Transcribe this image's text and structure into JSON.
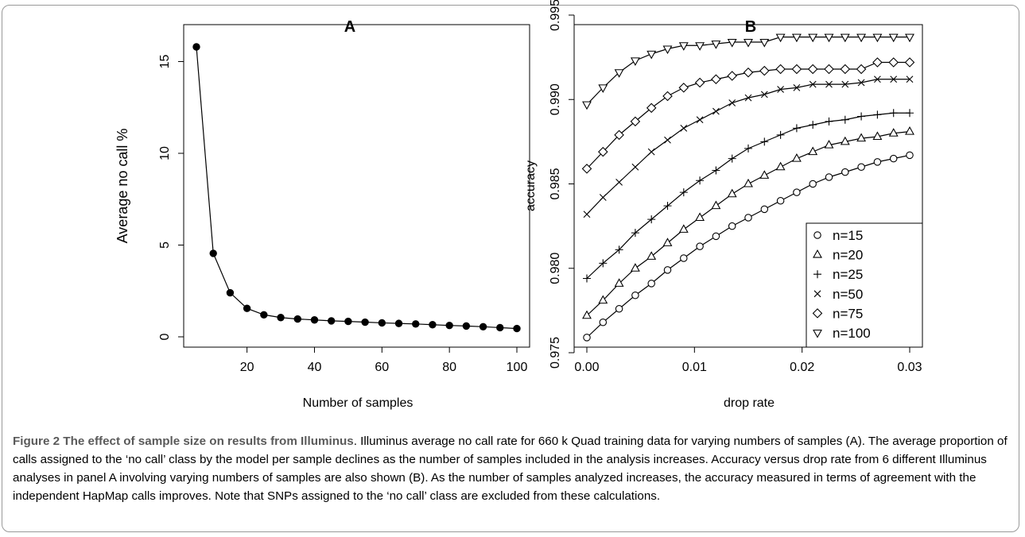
{
  "chart_data": [
    {
      "type": "line",
      "title": "A",
      "xlabel": "Number of samples",
      "ylabel": "Average no call %",
      "xlim": [
        5,
        100
      ],
      "ylim": [
        0,
        15.8
      ],
      "x_ticks": [
        20,
        40,
        60,
        80,
        100
      ],
      "y_ticks": [
        0,
        5,
        10,
        15
      ],
      "grid": false,
      "marker": "filled-circle",
      "x": [
        5,
        10,
        15,
        20,
        25,
        30,
        35,
        40,
        45,
        50,
        55,
        60,
        65,
        70,
        75,
        80,
        85,
        90,
        95,
        100
      ],
      "y": [
        15.8,
        4.55,
        2.4,
        1.55,
        1.2,
        1.05,
        0.97,
        0.92,
        0.87,
        0.84,
        0.8,
        0.76,
        0.73,
        0.7,
        0.66,
        0.62,
        0.59,
        0.55,
        0.5,
        0.45
      ]
    },
    {
      "type": "line",
      "title": "B",
      "xlabel": "drop rate",
      "ylabel": "accuracy",
      "xlim": [
        0,
        0.03
      ],
      "ylim": [
        0.9755,
        0.9945
      ],
      "x_ticks": [
        "0.00",
        "0.01",
        "0.02",
        "0.03"
      ],
      "y_ticks": [
        "0.975",
        "0.980",
        "0.985",
        "0.990",
        "0.995"
      ],
      "grid": false,
      "legend_position": "bottom-right",
      "x": [
        0,
        0.0015,
        0.003,
        0.0045,
        0.006,
        0.0075,
        0.009,
        0.0105,
        0.012,
        0.0135,
        0.015,
        0.0165,
        0.018,
        0.0195,
        0.021,
        0.0225,
        0.024,
        0.0255,
        0.027,
        0.0285,
        0.03
      ],
      "series": [
        {
          "name": "n=15",
          "marker": "circle",
          "values": [
            0.9759,
            0.9768,
            0.9776,
            0.9784,
            0.9791,
            0.9799,
            0.9806,
            0.9813,
            0.9819,
            0.9825,
            0.983,
            0.9835,
            0.984,
            0.9845,
            0.985,
            0.9854,
            0.9857,
            0.986,
            0.9863,
            0.9865,
            0.9867
          ]
        },
        {
          "name": "n=20",
          "marker": "triangle-up",
          "values": [
            0.9772,
            0.9781,
            0.9791,
            0.98,
            0.9807,
            0.9815,
            0.9823,
            0.983,
            0.9837,
            0.9844,
            0.985,
            0.9855,
            0.986,
            0.9865,
            0.9869,
            0.9873,
            0.9875,
            0.9877,
            0.9878,
            0.988,
            0.9881
          ]
        },
        {
          "name": "n=25",
          "marker": "plus",
          "values": [
            0.9794,
            0.9803,
            0.9811,
            0.9821,
            0.9829,
            0.9837,
            0.9845,
            0.9852,
            0.9858,
            0.9865,
            0.9871,
            0.9875,
            0.9879,
            0.9883,
            0.9885,
            0.9887,
            0.9888,
            0.989,
            0.9891,
            0.9892,
            0.9892
          ]
        },
        {
          "name": "n=50",
          "marker": "cross",
          "values": [
            0.9832,
            0.9842,
            0.9851,
            0.986,
            0.9869,
            0.9876,
            0.9883,
            0.9888,
            0.9893,
            0.9898,
            0.9901,
            0.9903,
            0.9906,
            0.9907,
            0.9909,
            0.9909,
            0.9909,
            0.991,
            0.9912,
            0.9912,
            0.9912
          ]
        },
        {
          "name": "n=75",
          "marker": "diamond",
          "values": [
            0.9859,
            0.9869,
            0.9879,
            0.9887,
            0.9895,
            0.9902,
            0.9907,
            0.991,
            0.9912,
            0.9914,
            0.9916,
            0.9917,
            0.9918,
            0.9918,
            0.9918,
            0.9918,
            0.9918,
            0.9918,
            0.9922,
            0.9922,
            0.9922
          ]
        },
        {
          "name": "n=100",
          "marker": "triangle-down",
          "values": [
            0.9897,
            0.9907,
            0.9916,
            0.9923,
            0.9927,
            0.993,
            0.9932,
            0.9932,
            0.9933,
            0.9934,
            0.9934,
            0.9934,
            0.9937,
            0.9937,
            0.9937,
            0.9937,
            0.9937,
            0.9937,
            0.9937,
            0.9937,
            0.9937
          ]
        }
      ]
    }
  ],
  "caption": {
    "title": "Figure 2 The effect of sample size on results from Illuminus",
    "text": ". Illuminus average no call rate for 660 k Quad training data for varying numbers of samples (A). The average proportion of calls assigned to the ‘no call’ class by the model per sample declines as the number of samples included in the analysis increases. Accuracy versus drop rate from 6 different Illuminus analyses in panel A involving varying numbers of samples are also shown (B). As the number of samples analyzed increases, the accuracy measured in terms of agreement with the independent HapMap calls improves. Note that SNPs assigned to the ‘no call’ class are excluded from these calculations."
  }
}
